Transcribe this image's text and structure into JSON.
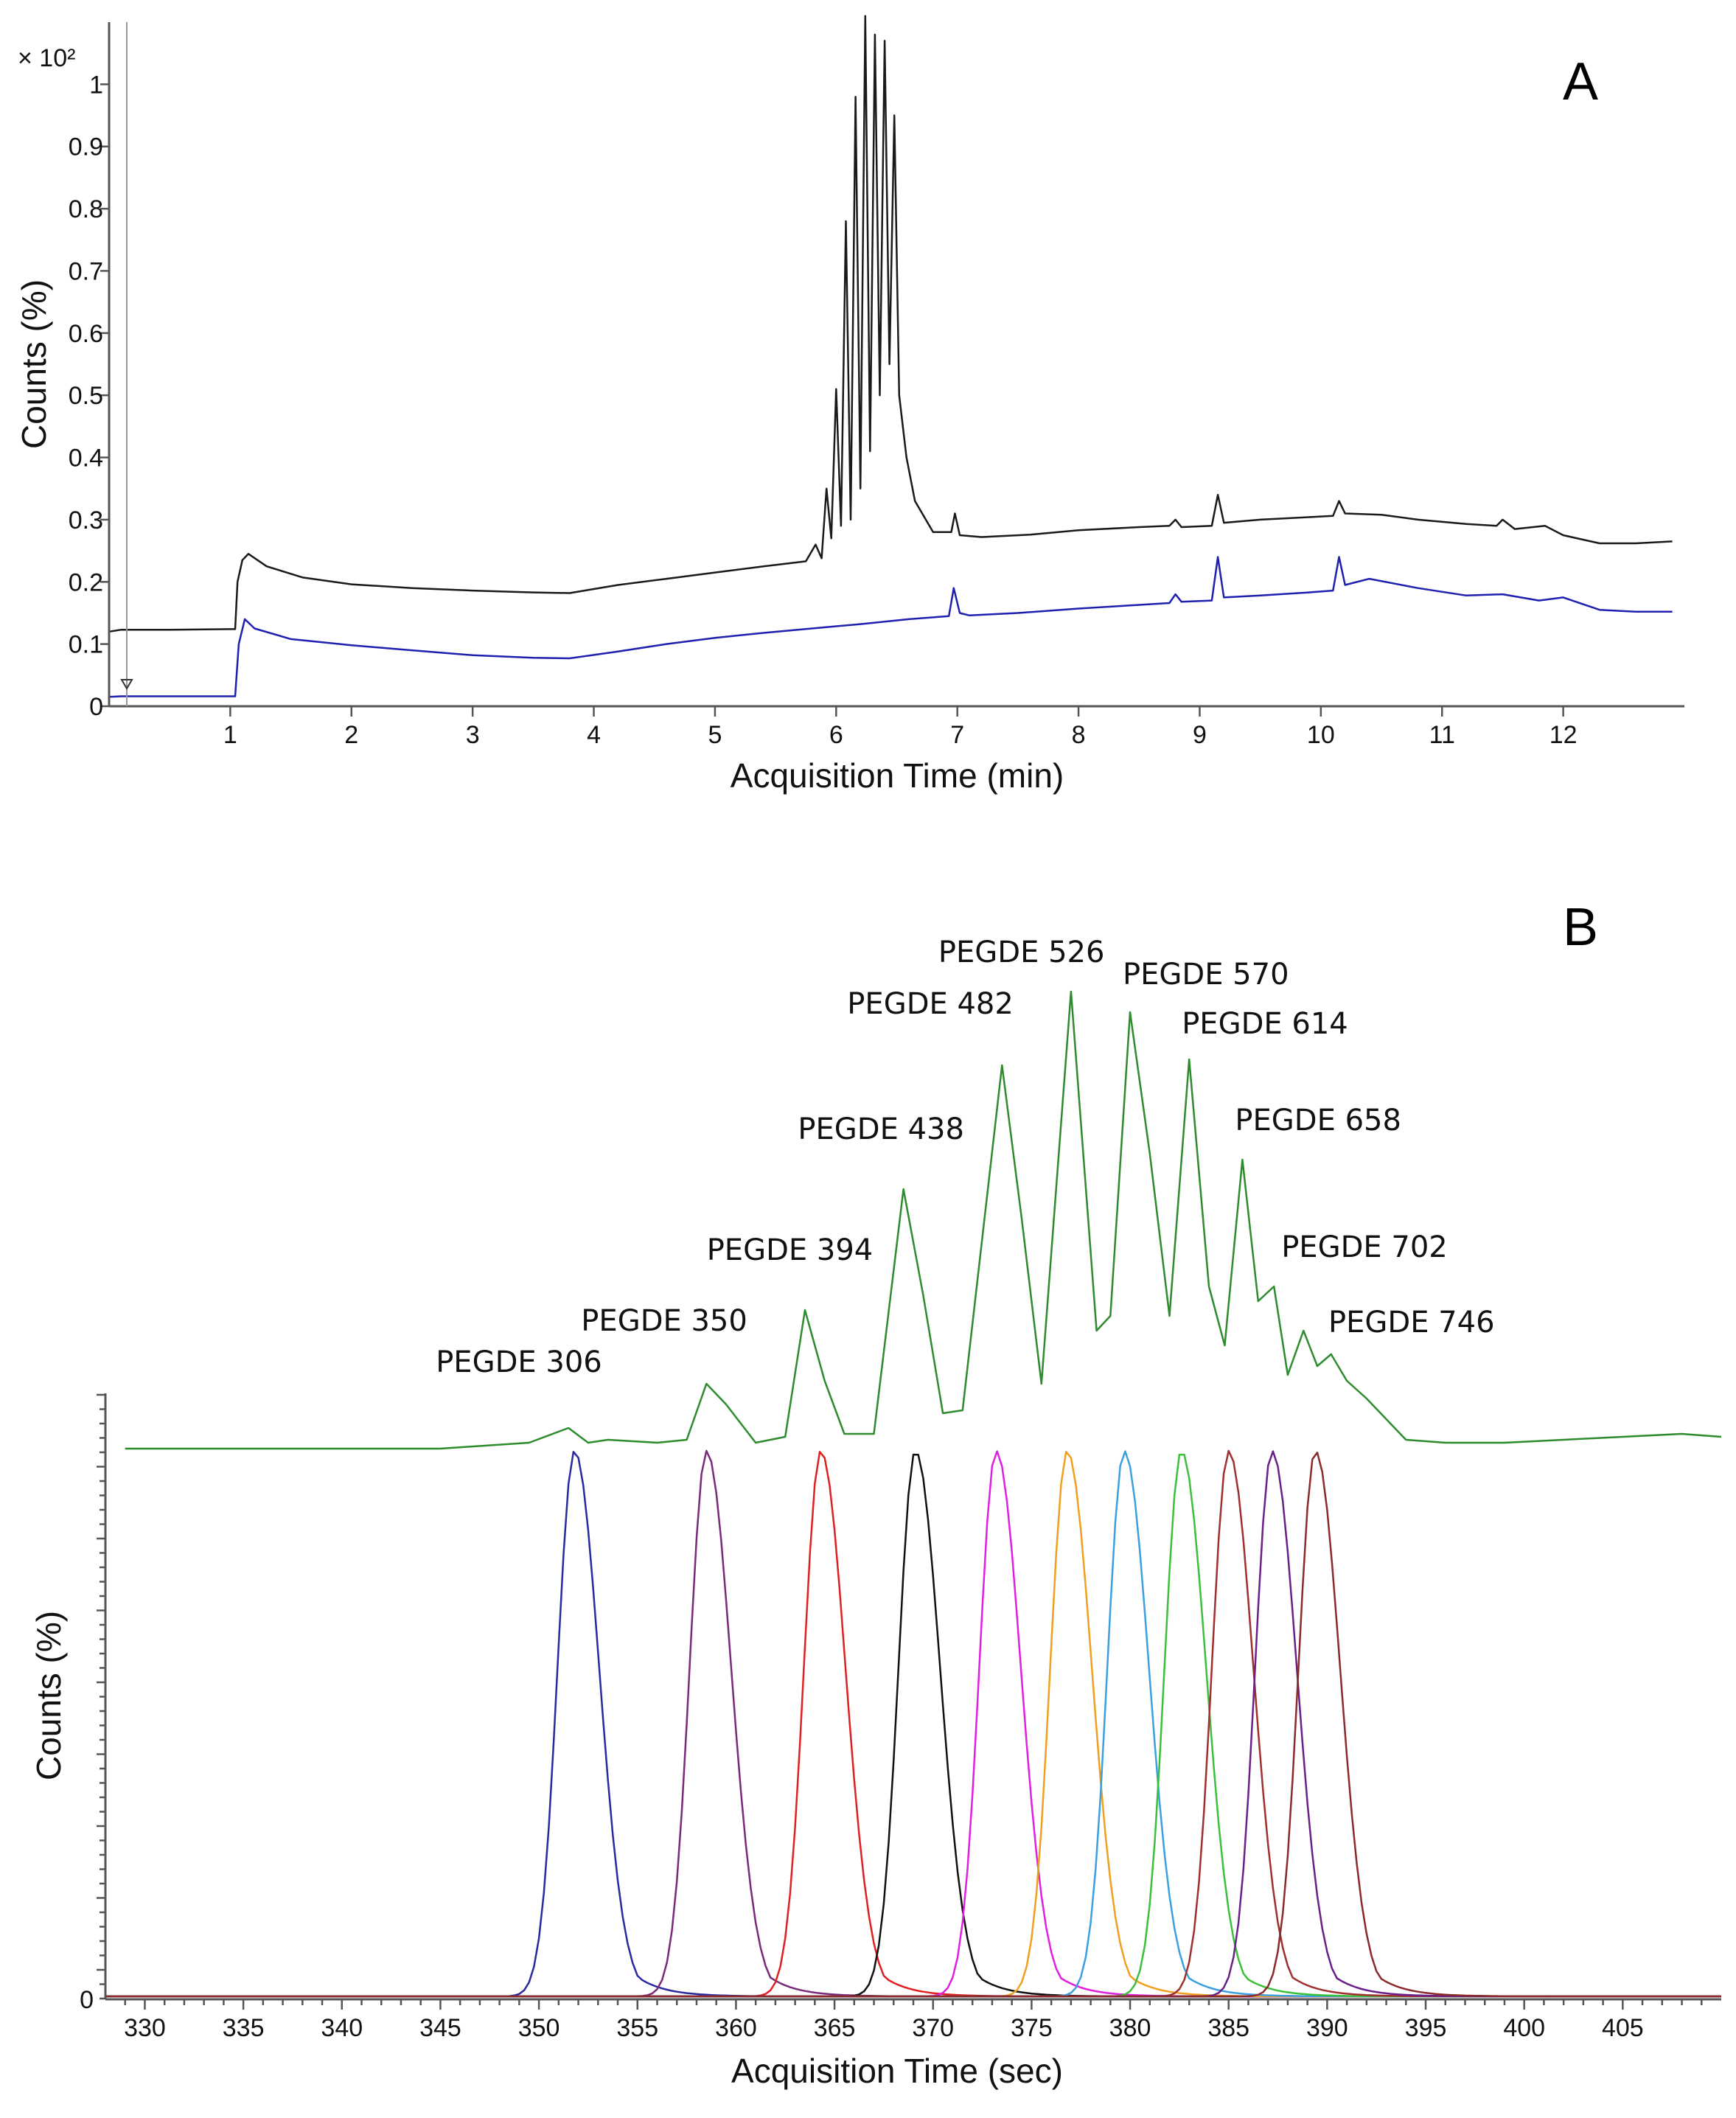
{
  "figure": {
    "panels": [
      "A",
      "B"
    ]
  },
  "chart_data": [
    {
      "type": "line",
      "panel": "A",
      "xlabel": "Acquisition Time (min)",
      "ylabel": "Counts (%)",
      "y_multiplier": "× 10²",
      "xlim": [
        0,
        13
      ],
      "ylim": [
        0,
        1.1
      ],
      "x_ticks": [
        1,
        2,
        3,
        4,
        5,
        6,
        7,
        8,
        9,
        10,
        11,
        12
      ],
      "y_ticks": [
        0,
        0.1,
        0.2,
        0.3,
        0.4,
        0.5,
        0.6,
        0.7,
        0.8,
        0.9,
        1
      ],
      "y_tick_labels": [
        "0",
        "0.1",
        "0.2",
        "0.3",
        "0.4",
        "0.5",
        "0.6",
        "0.7",
        "0.8",
        "0.9",
        "1"
      ],
      "series": [
        {
          "name": "black",
          "color": "#1a1a1a",
          "x": [
            0,
            0.1,
            0.5,
            1.0,
            1.04,
            1.06,
            1.1,
            1.15,
            1.3,
            1.6,
            2.0,
            2.5,
            3.0,
            3.5,
            3.8,
            4.2,
            4.6,
            5.0,
            5.4,
            5.75,
            5.83,
            5.88,
            5.92,
            5.96,
            6.0,
            6.04,
            6.08,
            6.12,
            6.16,
            6.2,
            6.24,
            6.28,
            6.32,
            6.36,
            6.4,
            6.44,
            6.48,
            6.52,
            6.58,
            6.65,
            6.8,
            6.95,
            6.98,
            7.02,
            7.2,
            7.6,
            8.0,
            8.5,
            8.75,
            8.8,
            8.85,
            9.1,
            9.15,
            9.2,
            9.5,
            9.9,
            10.1,
            10.15,
            10.2,
            10.5,
            10.8,
            11.2,
            11.45,
            11.5,
            11.6,
            11.85,
            12.0,
            12.3,
            12.6,
            12.9
          ],
          "y": [
            0.12,
            0.123,
            0.123,
            0.124,
            0.124,
            0.2,
            0.235,
            0.245,
            0.225,
            0.207,
            0.196,
            0.19,
            0.186,
            0.183,
            0.182,
            0.195,
            0.205,
            0.215,
            0.225,
            0.233,
            0.26,
            0.238,
            0.35,
            0.27,
            0.51,
            0.29,
            0.78,
            0.3,
            0.98,
            0.35,
            1.11,
            0.41,
            1.08,
            0.5,
            1.07,
            0.55,
            0.95,
            0.5,
            0.4,
            0.33,
            0.28,
            0.28,
            0.31,
            0.275,
            0.272,
            0.276,
            0.283,
            0.288,
            0.29,
            0.3,
            0.288,
            0.29,
            0.34,
            0.295,
            0.3,
            0.304,
            0.306,
            0.33,
            0.31,
            0.308,
            0.3,
            0.293,
            0.29,
            0.3,
            0.285,
            0.29,
            0.275,
            0.262,
            0.262,
            0.265
          ]
        },
        {
          "name": "blue",
          "color": "#1f1fb0",
          "x": [
            0,
            0.1,
            0.5,
            1.0,
            1.04,
            1.07,
            1.12,
            1.2,
            1.5,
            2.0,
            2.5,
            3.0,
            3.5,
            3.8,
            4.2,
            4.6,
            5.0,
            5.4,
            5.8,
            6.2,
            6.6,
            6.93,
            6.97,
            7.02,
            7.1,
            7.5,
            8.0,
            8.5,
            8.75,
            8.8,
            8.85,
            9.1,
            9.15,
            9.2,
            9.5,
            9.9,
            10.1,
            10.15,
            10.2,
            10.4,
            10.8,
            11.2,
            11.5,
            11.8,
            12.0,
            12.3,
            12.6,
            12.9
          ],
          "y": [
            0.015,
            0.016,
            0.016,
            0.016,
            0.016,
            0.1,
            0.14,
            0.125,
            0.108,
            0.098,
            0.09,
            0.082,
            0.078,
            0.077,
            0.088,
            0.1,
            0.11,
            0.118,
            0.125,
            0.132,
            0.14,
            0.145,
            0.19,
            0.15,
            0.146,
            0.15,
            0.157,
            0.163,
            0.166,
            0.18,
            0.168,
            0.17,
            0.24,
            0.175,
            0.178,
            0.183,
            0.186,
            0.24,
            0.195,
            0.205,
            0.19,
            0.178,
            0.18,
            0.17,
            0.175,
            0.155,
            0.152,
            0.152
          ]
        }
      ]
    },
    {
      "type": "line",
      "panel": "B",
      "xlabel": "Acquisition Time (sec)",
      "ylabel": "Counts (%)",
      "xlim": [
        328,
        410
      ],
      "x_ticks": [
        330,
        335,
        340,
        345,
        350,
        355,
        360,
        365,
        370,
        375,
        380,
        385,
        390,
        395,
        400,
        405
      ],
      "y_tick_labels": [
        "0"
      ],
      "tic_trace": {
        "color": "#2e8b2e",
        "baseline": 0,
        "x": [
          329,
          335,
          340,
          345,
          349.5,
          351.5,
          352.5,
          353.5,
          356,
          357.5,
          358.5,
          359.5,
          361,
          362.5,
          363.5,
          364.5,
          365.5,
          367,
          368.5,
          369.5,
          370.5,
          371.5,
          373.5,
          374.5,
          375.5,
          377,
          378.3,
          379,
          380,
          381,
          382,
          383,
          384,
          384.8,
          385.7,
          386.5,
          387.3,
          388,
          388.8,
          389.5,
          390.2,
          391,
          392,
          394,
          396,
          399,
          402,
          405,
          408,
          410
        ],
        "y": [
          0,
          0,
          0,
          0,
          0.2,
          0.7,
          0.2,
          0.3,
          0.2,
          0.3,
          2.2,
          1.5,
          0.2,
          0.4,
          4.7,
          2.3,
          0.5,
          0.5,
          8.8,
          5.2,
          1.2,
          1.3,
          13.0,
          7.8,
          2.2,
          15.5,
          4.0,
          4.5,
          14.8,
          10.0,
          4.5,
          13.2,
          5.5,
          3.5,
          9.8,
          5.0,
          5.5,
          2.5,
          4.0,
          2.8,
          3.2,
          2.3,
          1.7,
          0.3,
          0.2,
          0.2,
          0.3,
          0.4,
          0.5,
          0.4
        ]
      },
      "eic_peaks": [
        {
          "name": "PEGDE 306",
          "rt": 351.8,
          "color": "#2a2aa0"
        },
        {
          "name": "PEGDE 350",
          "rt": 358.5,
          "color": "#7a2a7a"
        },
        {
          "name": "PEGDE 394",
          "rt": 364.3,
          "color": "#e02020"
        },
        {
          "name": "PEGDE 438",
          "rt": 369.1,
          "color": "#111111"
        },
        {
          "name": "PEGDE 482",
          "rt": 373.2,
          "color": "#e020e0"
        },
        {
          "name": "PEGDE 526",
          "rt": 376.8,
          "color": "#f0a020"
        },
        {
          "name": "PEGDE 570",
          "rt": 379.7,
          "color": "#3aa0e0"
        },
        {
          "name": "PEGDE 614",
          "rt": 382.6,
          "color": "#3cc03c"
        },
        {
          "name": "PEGDE 658",
          "rt": 385.0,
          "color": "#a03030"
        },
        {
          "name": "PEGDE 702",
          "rt": 387.2,
          "color": "#6a1f8a"
        },
        {
          "name": "PEGDE 746",
          "rt": 389.4,
          "color": "#8b2a2a"
        }
      ],
      "annotations": [
        "PEGDE 306",
        "PEGDE 350",
        "PEGDE 394",
        "PEGDE 438",
        "PEGDE 482",
        "PEGDE 526",
        "PEGDE 570",
        "PEGDE 614",
        "PEGDE 658",
        "PEGDE 702",
        "PEGDE 746"
      ]
    }
  ]
}
